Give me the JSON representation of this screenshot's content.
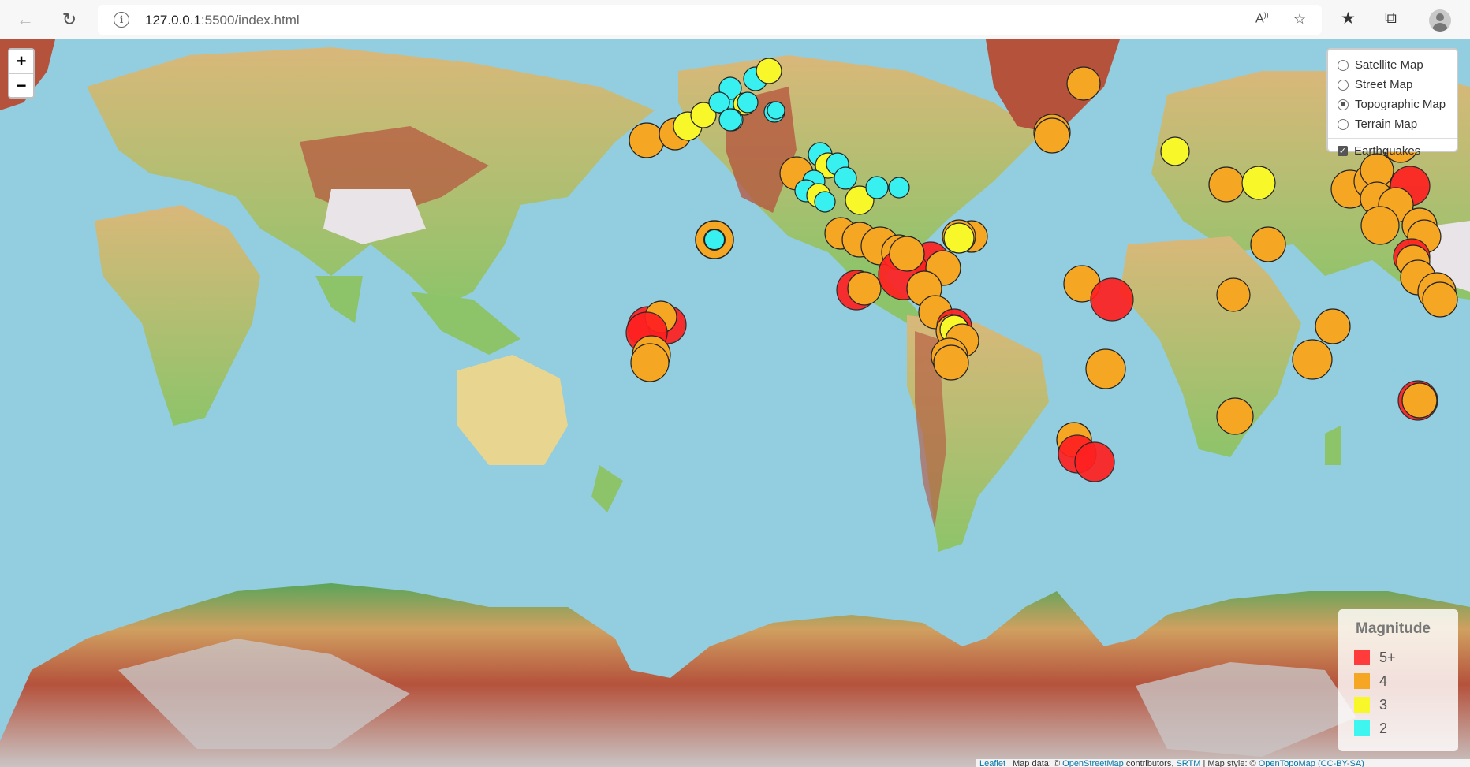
{
  "browser": {
    "url_host": "127.0.0.1",
    "url_path": ":5500/index.html",
    "back_icon": "arrow-left-icon",
    "reload_icon": "reload-icon"
  },
  "map": {
    "zoom_in": "+",
    "zoom_out": "−",
    "layers": [
      {
        "label": "Satellite Map",
        "selected": false
      },
      {
        "label": "Street Map",
        "selected": false
      },
      {
        "label": "Topographic Map",
        "selected": true
      },
      {
        "label": "Terrain Map",
        "selected": false
      }
    ],
    "overlay": {
      "label": "Earthquakes",
      "checked": true
    },
    "legend": {
      "title": "Magnitude",
      "items": [
        {
          "label": "5+",
          "color": "#ff3b3b"
        },
        {
          "label": "4",
          "color": "#f5a623"
        },
        {
          "label": "3",
          "color": "#f7f72a"
        },
        {
          "label": "2",
          "color": "#3ef5f0"
        }
      ]
    },
    "attribution": {
      "leaflet": "Leaflet",
      "sep1": " | Map data: © ",
      "osm": "OpenStreetMap",
      "sep2": " contributors, ",
      "srtm": "SRTM",
      "sep3": " | Map style: © ",
      "otm": "OpenTopoMap",
      "license": "(CC-BY-SA)"
    },
    "colors": {
      "ocean": "#93cde0",
      "mag5": "#ff2020",
      "mag4": "#f5a623",
      "mag3": "#f7f72a",
      "mag2": "#38f0f0"
    }
  }
}
